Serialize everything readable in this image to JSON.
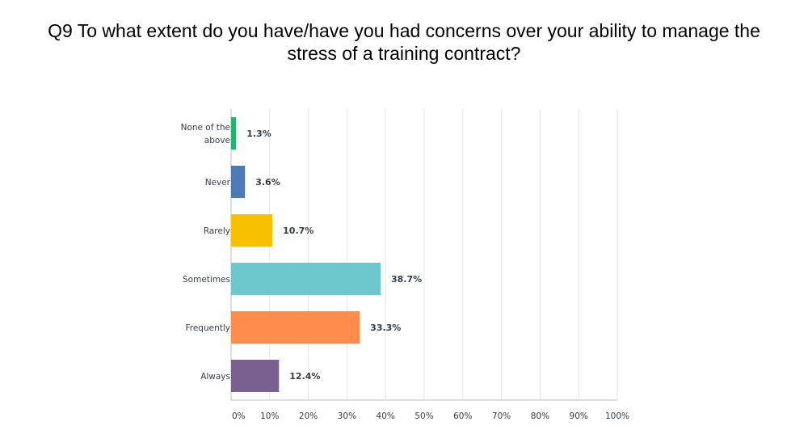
{
  "title_lines": [
    "Q9 To what extent do you have/have you had concerns over your ability to manage the",
    "stress of a training contract?"
  ],
  "chart_data": {
    "type": "bar",
    "orientation": "horizontal",
    "title": "Q9 To what extent do you have/have you had concerns over your ability to manage the stress of a training contract?",
    "categories": [
      [
        "None of the",
        "above"
      ],
      [
        "Never"
      ],
      [
        "Rarely"
      ],
      [
        "Sometimes"
      ],
      [
        "Frequently"
      ],
      [
        "Always"
      ]
    ],
    "values": [
      1.3,
      3.6,
      10.7,
      38.7,
      33.3,
      12.4
    ],
    "value_labels": [
      "1.3%",
      "3.6%",
      "10.7%",
      "38.7%",
      "33.3%",
      "12.4%"
    ],
    "colors": [
      "#1bb76e",
      "#4e79b7",
      "#f7c000",
      "#6cc8cc",
      "#ff8b4c",
      "#7a5f91"
    ],
    "xlim": [
      0,
      100
    ],
    "xticks": [
      "0%",
      "10%",
      "20%",
      "30%",
      "40%",
      "50%",
      "60%",
      "70%",
      "80%",
      "90%",
      "100%"
    ],
    "grid": true
  }
}
